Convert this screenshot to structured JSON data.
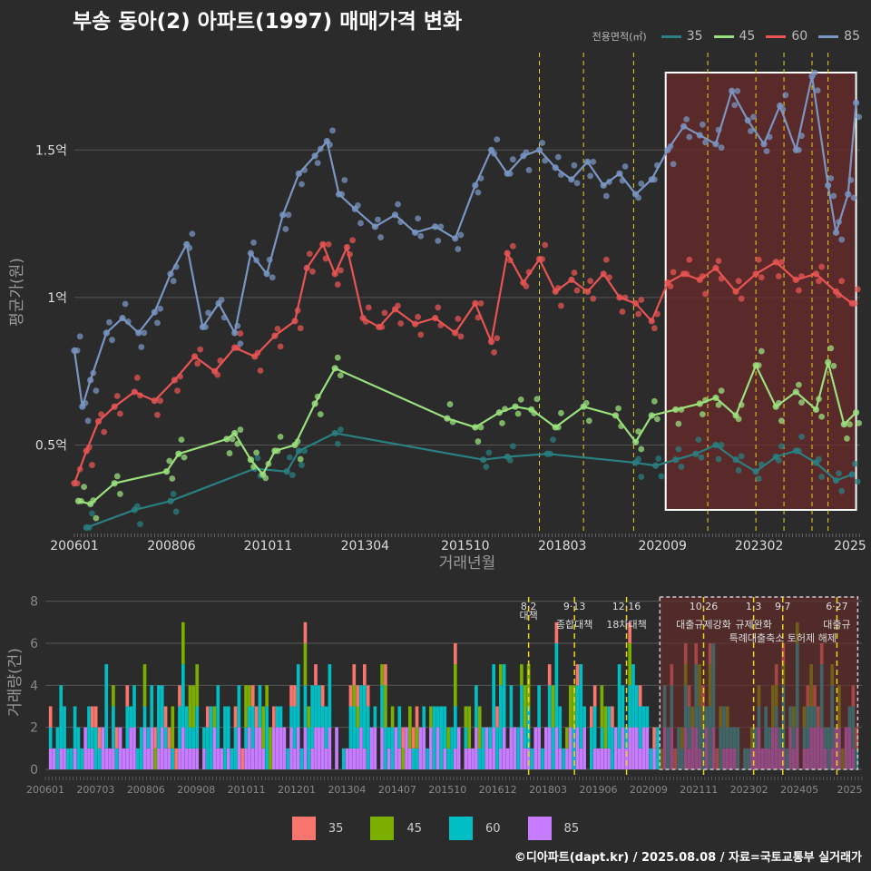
{
  "title": "부송 동아(2) 아파트(1997) 매매가격 변화",
  "legend_title": "전용면적(㎡)",
  "credit": "©디아파트(dapt.kr) / 2025.08.08 / 자료=국토교통부 실거래가",
  "colors": {
    "s35": "#2a7f80",
    "s45": "#9be07e",
    "s60": "#e85454",
    "s85": "#7a95c2",
    "b35": "#f8766d",
    "b45": "#7cae00",
    "b60": "#00bfc4",
    "b85": "#c77cff",
    "policy": "#e8d420",
    "highlight": "#6b2a2a"
  },
  "chart_data": [
    {
      "type": "line",
      "ylabel": "평균가(원)",
      "xlabel": "거래년월",
      "x_tick_labels": [
        "200601",
        "200806",
        "201011",
        "201304",
        "201510",
        "201803",
        "202009",
        "202302",
        "2025"
      ],
      "y_tick_labels": [
        "0.5억",
        "1억",
        "1.5억"
      ],
      "y_ticks": [
        0.5,
        1.0,
        1.5
      ],
      "ylim": [
        0.2,
        1.83
      ],
      "xlim": [
        2006.0,
        2025.6
      ],
      "highlight_range": [
        2020.75,
        2025.5
      ],
      "policy_lines": [
        2017.6,
        2018.7,
        2019.95,
        2021.8,
        2023.0,
        2023.7,
        2024.4,
        2024.8
      ],
      "series": [
        {
          "name": "35",
          "x": [
            2006.3,
            2007.5,
            2008.4,
            2010.5,
            2011.3,
            2011.6,
            2012.5,
            2016.2,
            2016.8,
            2017.8,
            2020.0,
            2020.5,
            2021.0,
            2021.5,
            2022.0,
            2022.5,
            2023.0,
            2023.5,
            2024.0,
            2024.5,
            2025.0,
            2025.4
          ],
          "values": [
            0.22,
            0.28,
            0.31,
            0.42,
            0.41,
            0.48,
            0.54,
            0.45,
            0.46,
            0.47,
            0.44,
            0.43,
            0.45,
            0.47,
            0.5,
            0.45,
            0.41,
            0.46,
            0.48,
            0.44,
            0.38,
            0.4
          ]
        },
        {
          "name": "45",
          "x": [
            2006.1,
            2006.4,
            2007.0,
            2008.3,
            2008.6,
            2009.8,
            2010.0,
            2010.4,
            2010.7,
            2011.0,
            2011.5,
            2012.0,
            2012.5,
            2015.3,
            2016.0,
            2016.6,
            2017.0,
            2017.4,
            2018.0,
            2018.7,
            2019.5,
            2020.0,
            2020.4,
            2021.0,
            2021.6,
            2022.0,
            2022.5,
            2023.0,
            2023.5,
            2024.0,
            2024.5,
            2024.8,
            2025.2,
            2025.5
          ],
          "values": [
            0.31,
            0.3,
            0.37,
            0.41,
            0.47,
            0.52,
            0.54,
            0.45,
            0.4,
            0.48,
            0.5,
            0.64,
            0.76,
            0.59,
            0.56,
            0.61,
            0.63,
            0.62,
            0.56,
            0.63,
            0.6,
            0.51,
            0.6,
            0.62,
            0.64,
            0.66,
            0.6,
            0.77,
            0.63,
            0.68,
            0.62,
            0.78,
            0.57,
            0.61
          ]
        },
        {
          "name": "60",
          "x": [
            2006.0,
            2006.3,
            2006.6,
            2007.0,
            2007.5,
            2008.0,
            2008.5,
            2009.0,
            2009.5,
            2010.0,
            2010.5,
            2011.0,
            2011.5,
            2011.8,
            2012.2,
            2012.5,
            2012.8,
            2013.2,
            2013.6,
            2014.0,
            2014.5,
            2015.0,
            2015.5,
            2016.0,
            2016.4,
            2016.8,
            2017.2,
            2017.6,
            2018.0,
            2018.4,
            2018.8,
            2019.2,
            2019.6,
            2020.0,
            2020.4,
            2020.8,
            2021.2,
            2021.6,
            2022.0,
            2022.5,
            2023.0,
            2023.5,
            2024.0,
            2024.5,
            2025.0,
            2025.4
          ],
          "values": [
            0.37,
            0.48,
            0.58,
            0.63,
            0.68,
            0.65,
            0.72,
            0.8,
            0.75,
            0.83,
            0.8,
            0.87,
            0.92,
            1.1,
            1.18,
            1.08,
            1.17,
            0.93,
            0.9,
            0.96,
            0.91,
            0.93,
            0.88,
            0.98,
            0.85,
            1.15,
            1.05,
            1.13,
            1.02,
            1.06,
            1.02,
            1.08,
            1.0,
            0.98,
            0.92,
            1.05,
            1.08,
            1.06,
            1.1,
            1.02,
            1.08,
            1.12,
            1.06,
            1.08,
            1.02,
            0.98
          ]
        },
        {
          "name": "85",
          "x": [
            2006.0,
            2006.2,
            2006.4,
            2006.8,
            2007.2,
            2007.6,
            2008.0,
            2008.4,
            2008.8,
            2009.2,
            2009.6,
            2010.0,
            2010.4,
            2010.8,
            2011.2,
            2011.6,
            2012.0,
            2012.3,
            2012.6,
            2013.0,
            2013.5,
            2014.0,
            2014.5,
            2015.0,
            2015.5,
            2016.0,
            2016.4,
            2016.8,
            2017.2,
            2017.6,
            2018.0,
            2018.4,
            2018.8,
            2019.2,
            2019.6,
            2020.0,
            2020.4,
            2020.8,
            2021.2,
            2021.6,
            2022.0,
            2022.4,
            2022.8,
            2023.2,
            2023.6,
            2024.0,
            2024.4,
            2024.8,
            2025.0,
            2025.3,
            2025.5
          ],
          "values": [
            0.82,
            0.63,
            0.72,
            0.88,
            0.93,
            0.88,
            0.95,
            1.08,
            1.18,
            0.9,
            0.98,
            0.88,
            1.15,
            1.08,
            1.28,
            1.42,
            1.48,
            1.53,
            1.35,
            1.3,
            1.24,
            1.28,
            1.22,
            1.24,
            1.2,
            1.38,
            1.5,
            1.42,
            1.48,
            1.5,
            1.44,
            1.4,
            1.46,
            1.38,
            1.42,
            1.35,
            1.4,
            1.5,
            1.58,
            1.55,
            1.52,
            1.7,
            1.6,
            1.52,
            1.65,
            1.5,
            1.75,
            1.38,
            1.22,
            1.35,
            1.66
          ]
        }
      ]
    },
    {
      "type": "bar",
      "stacked": true,
      "ylabel": "거래량(건)",
      "x_tick_labels": [
        "200601",
        "200703",
        "200806",
        "200908",
        "201011",
        "201201",
        "201304",
        "201407",
        "201510",
        "201612",
        "201803",
        "201906",
        "202009",
        "202111",
        "202302",
        "202405",
        "2025"
      ],
      "y_ticks": [
        0,
        2,
        4,
        6,
        8
      ],
      "ylim": [
        0,
        8.2
      ],
      "xlim": [
        2006.0,
        2025.6
      ],
      "series_names": [
        "35",
        "45",
        "60",
        "85"
      ],
      "highlight_range": [
        2020.75,
        2025.5
      ],
      "months": 234,
      "seed": 17,
      "annotations": [
        {
          "x": 2017.6,
          "date": "8·2",
          "label": "대책",
          "row": 0
        },
        {
          "x": 2018.7,
          "date": "9·13",
          "label": "종합대책",
          "row": 1
        },
        {
          "x": 2019.95,
          "date": "12·16",
          "label": "18차대책",
          "row": 1
        },
        {
          "x": 2021.8,
          "date": "10·26",
          "label": "대출규제강화",
          "row": 1
        },
        {
          "x": 2023.0,
          "date": "1·3",
          "label": "규제완화",
          "row": 1
        },
        {
          "x": 2023.7,
          "date": "9·7",
          "label": "특례대출축소 토허제 해제",
          "row": 2
        },
        {
          "x": 2025.0,
          "date": "6·27",
          "label": "대출규",
          "row": 1
        }
      ]
    }
  ]
}
